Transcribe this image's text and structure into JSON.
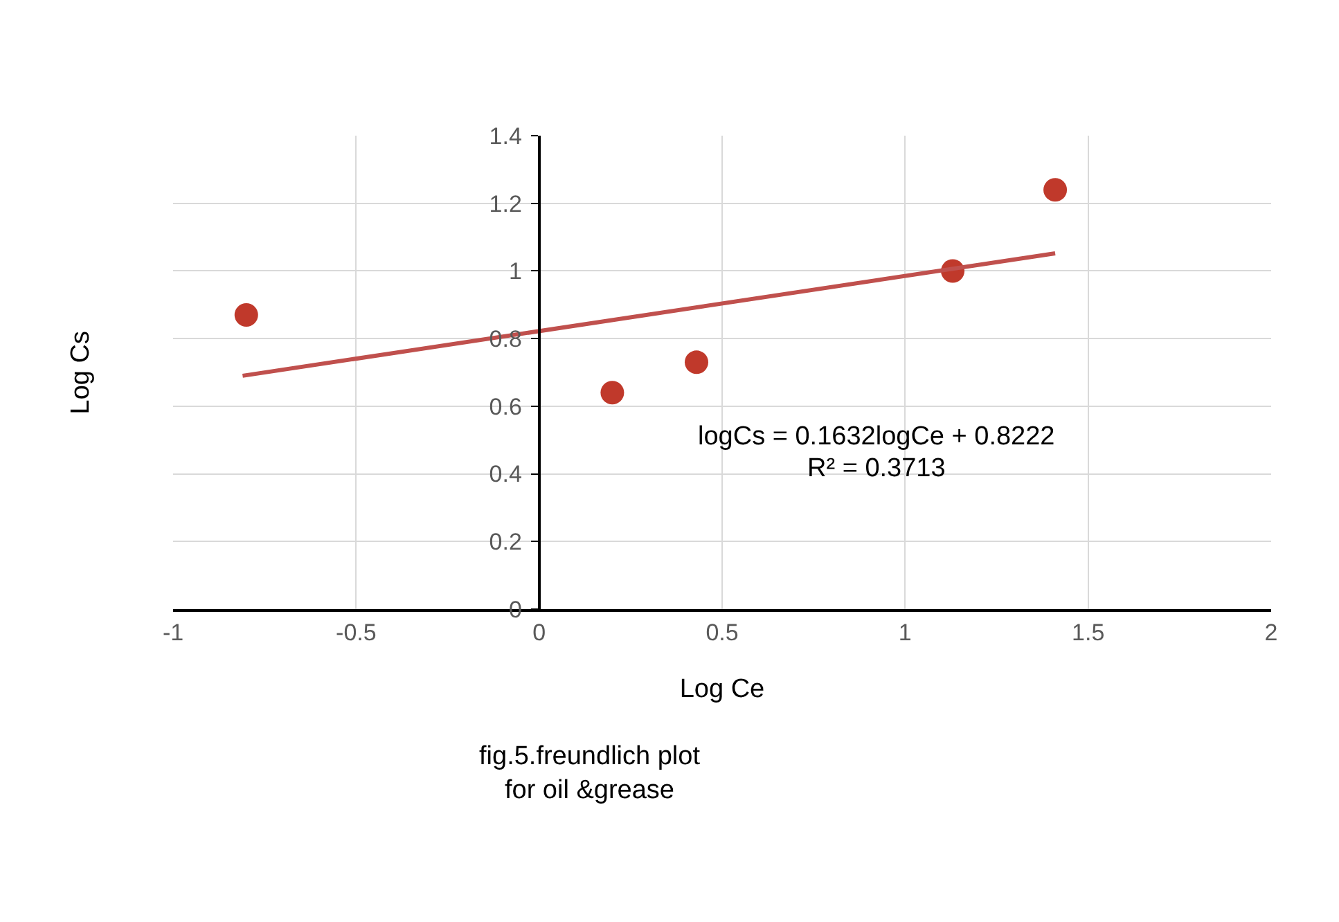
{
  "chart_data": {
    "type": "scatter",
    "xlabel": "Log Ce",
    "ylabel": "Log Cs",
    "x": [
      -0.8,
      0.2,
      0.43,
      1.13,
      1.41
    ],
    "series": [
      {
        "color": "#c0392b",
        "values": [
          0.87,
          0.64,
          0.73,
          1.0,
          1.24
        ]
      },
      {
        "type": "line",
        "marker": "none",
        "color": "#c0504d",
        "x": [
          -0.81,
          1.41
        ],
        "values": [
          0.69,
          1.052
        ]
      }
    ],
    "xlim": [
      -1,
      2
    ],
    "xticks": [
      -1,
      -0.5,
      0,
      0.5,
      1,
      1.5,
      2
    ],
    "ylim": [
      0,
      1.4
    ],
    "yticks": [
      0,
      0.2,
      0.4,
      0.6,
      0.8,
      1,
      1.2,
      1.4
    ],
    "grid": true,
    "marker": "circle",
    "line_style": "solid",
    "annotations": [
      "logCs = 0.1632logCe + 0.8222",
      "R² = 0.3713",
      "fig.5.freundlich plot\nfor oil &grease"
    ]
  }
}
